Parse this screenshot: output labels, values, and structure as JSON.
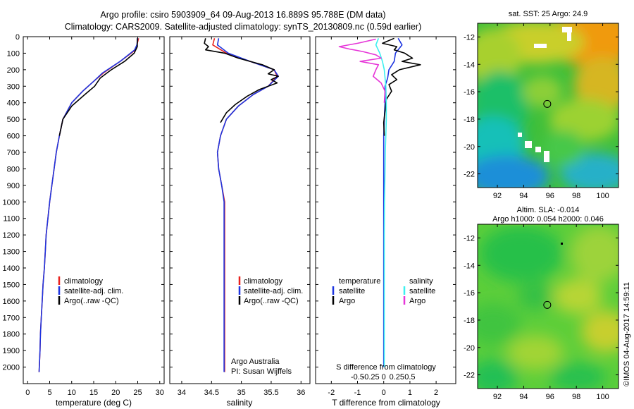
{
  "header": {
    "title_line1": "Argo profile: csiro 5903909_64 09-Aug-2013 16.889S 95.788E (DM data)",
    "title_line2": "Climatology: CARS2009. Satellite-adjusted climatology: synTS_20130809.nc (0.59d earlier)"
  },
  "colors": {
    "climatology": "#e8211d",
    "satellite_adj": "#1d35e0",
    "argo": "#000000",
    "sal_satellite": "#3cf0f0",
    "sal_argo": "#e636d8"
  },
  "chart_data": [
    {
      "type": "line",
      "name": "temperature-profile",
      "xlabel": "temperature (deg C)",
      "ylabel": "",
      "xlim": [
        -1,
        31
      ],
      "ylim": [
        2100,
        0
      ],
      "xticks": [
        0,
        5,
        10,
        15,
        20,
        25,
        30
      ],
      "yticks": [
        0,
        100,
        200,
        300,
        400,
        500,
        600,
        700,
        800,
        900,
        1000,
        1100,
        1200,
        1300,
        1400,
        1500,
        1600,
        1700,
        1800,
        1900,
        2000
      ],
      "legend": [
        "climatology",
        "satellite-adj. clim.",
        "Argo(..raw -QC)"
      ],
      "legend_position": "center-left",
      "series": [
        {
          "name": "climatology",
          "color_key": "climatology",
          "x": [
            25.2,
            24.8,
            24.5,
            21.0,
            17.2,
            15.0,
            12.5,
            10.0,
            8.0,
            7.2,
            6.5,
            6.0,
            5.5,
            5.0,
            4.6,
            4.2,
            4.0,
            3.8,
            3.5,
            3.3,
            3.1,
            2.9,
            2.8,
            2.6
          ],
          "y": [
            10,
            50,
            80,
            150,
            220,
            270,
            330,
            400,
            500,
            600,
            700,
            800,
            900,
            1000,
            1100,
            1200,
            1300,
            1400,
            1500,
            1600,
            1700,
            1800,
            1900,
            2030
          ]
        },
        {
          "name": "satellite-adj. clim.",
          "color_key": "satellite_adj",
          "x": [
            25.0,
            24.8,
            24.3,
            21.0,
            17.0,
            15.0,
            12.5,
            10.0,
            8.0,
            7.2,
            6.5,
            6.0,
            5.5,
            5.0,
            4.6,
            4.2,
            4.0,
            3.8,
            3.5,
            3.3,
            3.1,
            2.9,
            2.8,
            2.6
          ],
          "y": [
            10,
            50,
            80,
            150,
            220,
            270,
            330,
            400,
            500,
            600,
            700,
            800,
            900,
            1000,
            1100,
            1200,
            1300,
            1400,
            1500,
            1600,
            1700,
            1800,
            1900,
            2030
          ]
        },
        {
          "name": "Argo(..raw -QC)",
          "color_key": "argo",
          "x": [
            24.9,
            24.9,
            24.2,
            22.0,
            19.0,
            16.5,
            15.2,
            13.0,
            10.0,
            8.0,
            7.2
          ],
          "y": [
            10,
            60,
            100,
            150,
            200,
            250,
            300,
            350,
            420,
            500,
            600
          ]
        }
      ]
    },
    {
      "type": "line",
      "name": "salinity-profile",
      "xlabel": "salinity",
      "ylabel": "",
      "xlim": [
        33.8,
        36.15
      ],
      "ylim": [
        2100,
        0
      ],
      "xticks": [
        34,
        34.5,
        35,
        35.5,
        36
      ],
      "legend": [
        "climatology",
        "satellite-adj. clim.",
        "Argo(..raw -QC)"
      ],
      "legend_position": "center-right",
      "annotation_line1": "Argo Australia",
      "annotation_line2": "PI: Susan Wijffels",
      "series": [
        {
          "name": "climatology",
          "color_key": "climatology",
          "x": [
            34.55,
            34.52,
            34.75,
            35.15,
            35.55,
            35.6,
            35.45,
            35.2,
            34.95,
            34.75,
            34.65,
            34.6,
            34.62,
            34.67,
            34.72,
            34.72,
            34.72,
            34.72,
            34.72,
            34.72
          ],
          "y": [
            10,
            50,
            100,
            150,
            200,
            240,
            300,
            350,
            420,
            500,
            600,
            700,
            800,
            900,
            1000,
            1200,
            1400,
            1600,
            1800,
            2030
          ]
        },
        {
          "name": "satellite-adj. clim.",
          "color_key": "satellite_adj",
          "x": [
            34.62,
            34.6,
            34.78,
            35.15,
            35.55,
            35.62,
            35.45,
            35.2,
            34.95,
            34.75,
            34.65,
            34.6,
            34.62,
            34.67,
            34.71,
            34.71,
            34.71,
            34.71,
            34.71,
            34.71
          ],
          "y": [
            10,
            50,
            100,
            150,
            200,
            240,
            300,
            350,
            420,
            500,
            600,
            700,
            800,
            900,
            1000,
            1200,
            1400,
            1600,
            1800,
            2030
          ]
        },
        {
          "name": "Argo(..raw -QC)",
          "color_key": "argo",
          "x": [
            34.4,
            34.38,
            34.45,
            34.4,
            34.72,
            34.95,
            35.35,
            35.55,
            35.45,
            35.62,
            35.5,
            35.6,
            35.3,
            35.1,
            34.9,
            34.75,
            34.65
          ],
          "y": [
            10,
            40,
            60,
            80,
            100,
            130,
            170,
            200,
            225,
            240,
            260,
            280,
            320,
            360,
            410,
            460,
            520
          ]
        }
      ]
    },
    {
      "type": "line",
      "name": "difference-profile",
      "xlabel": "T difference from climatology",
      "xlabel_top": "S difference from climatology",
      "xlim": [
        -2.6,
        2.75
      ],
      "ylim": [
        2100,
        0
      ],
      "xticks": [
        -2,
        -1,
        0,
        1,
        2
      ],
      "s_ticks": [
        -0.5,
        -0.25,
        0,
        0.25,
        0.5
      ],
      "s_ticklabels": [
        "-0.5",
        "-0.25",
        "0",
        "0.25",
        "0.5"
      ],
      "legend_temperature_title": "temperature",
      "legend_salinity_title": "salinity",
      "legend_labels": [
        "satellite",
        "Argo",
        "satellite",
        "Argo"
      ],
      "legend_position": "center",
      "series": [
        {
          "name": "satellite",
          "color_key": "satellite_adj",
          "x": [
            0.55,
            0.7,
            0.45,
            0.4,
            0.2,
            0.15,
            0.05,
            0.05,
            0.02,
            0.0,
            0.0,
            0.0,
            0.0,
            0.0,
            0.0,
            0.0,
            0.0,
            0.0,
            0.0,
            0.0
          ],
          "y": [
            10,
            50,
            100,
            150,
            200,
            250,
            300,
            400,
            500,
            600,
            700,
            800,
            900,
            1000,
            1200,
            1400,
            1600,
            1800,
            1900,
            2000
          ]
        },
        {
          "name": "Argo",
          "color_key": "argo",
          "x": [
            0.4,
            -0.05,
            0.5,
            0.4,
            0.8,
            1.1,
            0.7,
            1.4,
            0.6,
            0.3,
            0.5,
            0.2,
            0.3,
            0.1,
            0.05,
            0.0,
            0.02
          ],
          "y": [
            10,
            40,
            60,
            80,
            100,
            130,
            150,
            170,
            200,
            230,
            260,
            290,
            330,
            380,
            450,
            520,
            600
          ]
        },
        {
          "name": "satellite",
          "color_key": "sal_satellite",
          "x": [
            -0.2,
            -0.3,
            -0.15,
            -0.05,
            0.02,
            0.05,
            0.08,
            0.1,
            0.1,
            0.08,
            0.06,
            0.05,
            0.04,
            0.03,
            0.02,
            0.02,
            0.02,
            0.02,
            0.02,
            0.02
          ],
          "y": [
            10,
            50,
            100,
            150,
            200,
            250,
            300,
            400,
            500,
            600,
            700,
            800,
            900,
            1000,
            1200,
            1400,
            1600,
            1800,
            1900,
            2000
          ]
        },
        {
          "name": "Argo",
          "color_key": "sal_argo",
          "x": [
            -0.3,
            -1.0,
            -1.7,
            -1.3,
            -0.8,
            -0.3,
            -0.1,
            -0.9,
            -0.2,
            -0.3,
            -0.4,
            -0.1,
            0.05,
            0.02
          ],
          "y": [
            15,
            40,
            60,
            75,
            90,
            110,
            130,
            150,
            170,
            200,
            240,
            280,
            330,
            400
          ]
        }
      ]
    },
    {
      "type": "heatmap",
      "name": "sst-map",
      "title": "sat. SST: 25 Argo: 24.9",
      "xlim": [
        90.5,
        101.2
      ],
      "ylim": [
        -23,
        -11
      ],
      "xticks": [
        92,
        94,
        96,
        98,
        100
      ],
      "yticks": [
        -12,
        -14,
        -16,
        -18,
        -20,
        -22
      ],
      "marker": {
        "lon": 95.788,
        "lat": -16.889
      }
    },
    {
      "type": "heatmap",
      "name": "sla-map",
      "title_line1": "Altim. SLA: -0.014",
      "title_line2": "Argo h1000: 0.054 h2000: 0.046",
      "xlim": [
        90.5,
        101.2
      ],
      "ylim": [
        -23,
        -11
      ],
      "xticks": [
        92,
        94,
        96,
        98,
        100
      ],
      "yticks": [
        -12,
        -14,
        -16,
        -18,
        -20,
        -22
      ],
      "marker": {
        "lon": 95.788,
        "lat": -16.889
      }
    }
  ],
  "footer": {
    "stamp": "©IMOS 04-Aug-2017 14:59:11"
  }
}
